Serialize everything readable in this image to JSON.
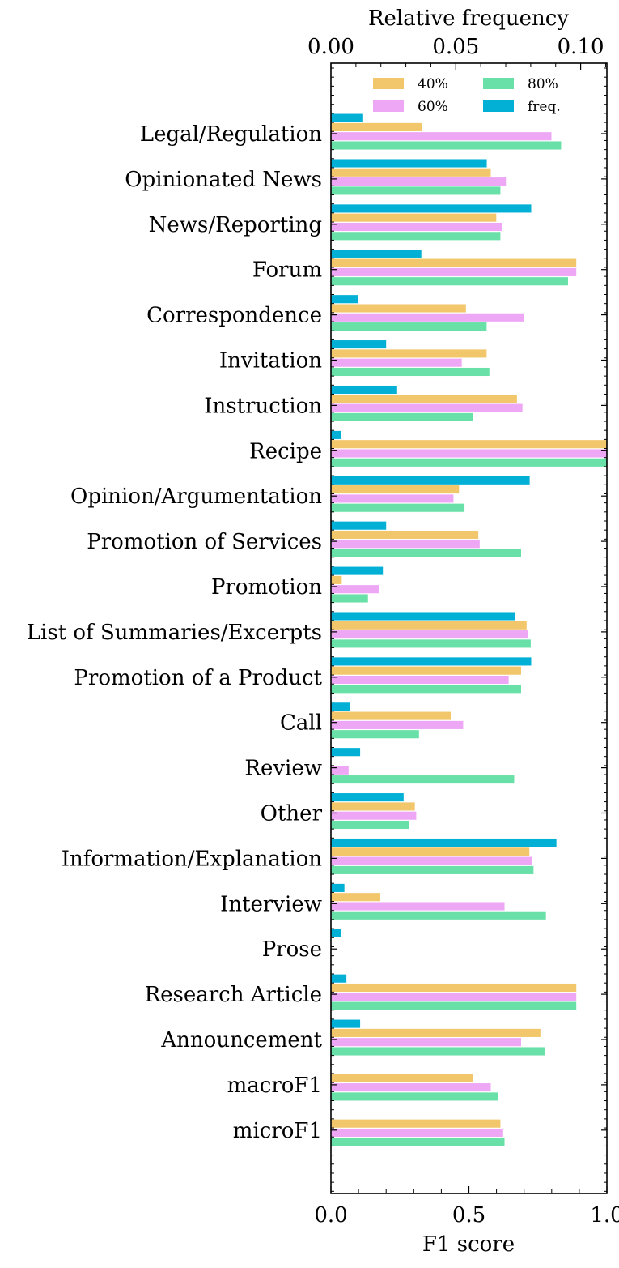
{
  "chart_data": {
    "type": "bar",
    "orientation": "horizontal",
    "categories": [
      "Legal/Regulation",
      "Opinionated News",
      "News/Reporting",
      "Forum",
      "Correspondence",
      "Invitation",
      "Instruction",
      "Recipe",
      "Opinion/Argumentation",
      "Promotion of Services",
      "Promotion",
      "List of Summaries/Excerpts",
      "Promotion of a Product",
      "Call",
      "Review",
      "Other",
      "Information/Explanation",
      "Interview",
      "Prose",
      "Research Article",
      "Announcement",
      "macroF1",
      "microF1"
    ],
    "series": [
      {
        "name": "freq.",
        "axis": "top",
        "color": "#02b0d6",
        "values": [
          0.013,
          0.0625,
          0.0803,
          0.0363,
          0.0111,
          0.0222,
          0.0266,
          0.0042,
          0.0797,
          0.0222,
          0.0209,
          0.0738,
          0.0803,
          0.0076,
          0.0118,
          0.0292,
          0.0904,
          0.0055,
          0.0042,
          0.0063,
          0.0118,
          null,
          null
        ]
      },
      {
        "name": "40%",
        "axis": "bottom",
        "color": "#f2c76b",
        "values": [
          0.33,
          0.58,
          0.6,
          0.89,
          0.49,
          0.565,
          0.675,
          1.0,
          0.465,
          0.535,
          0.04,
          0.71,
          0.69,
          0.435,
          0.0,
          0.305,
          0.72,
          0.18,
          0.0,
          0.89,
          0.76,
          0.515,
          0.615
        ]
      },
      {
        "name": "60%",
        "axis": "bottom",
        "color": "#eea7f5",
        "values": [
          0.8,
          0.635,
          0.62,
          0.89,
          0.7,
          0.475,
          0.695,
          1.0,
          0.445,
          0.54,
          0.175,
          0.715,
          0.645,
          0.48,
          0.065,
          0.31,
          0.73,
          0.63,
          0.0,
          0.89,
          0.69,
          0.58,
          0.625
        ]
      },
      {
        "name": "80%",
        "axis": "bottom",
        "color": "#68e0a8",
        "values": [
          0.835,
          0.615,
          0.615,
          0.86,
          0.565,
          0.575,
          0.515,
          1.0,
          0.485,
          0.69,
          0.135,
          0.725,
          0.69,
          0.32,
          0.665,
          0.285,
          0.735,
          0.78,
          0.0,
          0.89,
          0.775,
          0.605,
          0.63
        ]
      }
    ],
    "xlabel": "F1 score",
    "xlim": [
      0.0,
      1.0
    ],
    "xticks": [
      "0.0",
      "0.5",
      "1.0"
    ],
    "x2label": "Relative frequency",
    "x2lim": [
      0.0,
      0.1105
    ],
    "x2ticks": [
      "0.00",
      "0.05",
      "0.10"
    ],
    "legend": {
      "placement": "top-right",
      "columns": 2,
      "entries": [
        "40%",
        "60%",
        "80%",
        "freq."
      ]
    },
    "grid": false
  }
}
